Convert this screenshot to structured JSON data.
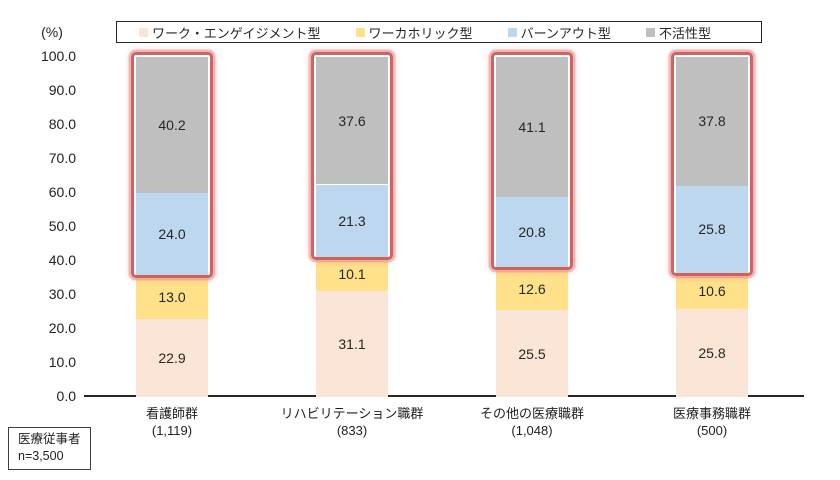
{
  "unit_label": "(%)",
  "legend": {
    "items": [
      {
        "label": "ワーク・エンゲイジメント型",
        "color": "#fbe5d6"
      },
      {
        "label": "ワーカホリック型",
        "color": "#ffe18a"
      },
      {
        "label": "バーンアウト型",
        "color": "#bdd7ee"
      },
      {
        "label": "不活性型",
        "color": "#bfbfbf"
      }
    ]
  },
  "note_box": {
    "line1": "医療従事者",
    "line2": "n=3,500"
  },
  "chart_data": {
    "type": "bar",
    "stacked": true,
    "orientation": "vertical",
    "categories": [
      "看護師群",
      "リハビリテーション職群",
      "その他の医療職群",
      "医療事務職群"
    ],
    "category_counts": [
      "(1,119)",
      "(833)",
      "(1,048)",
      "(500)"
    ],
    "series": [
      {
        "name": "ワーク・エンゲイジメント型",
        "color": "#fbe5d6",
        "values": [
          22.9,
          31.1,
          25.5,
          25.8
        ]
      },
      {
        "name": "ワーカホリック型",
        "color": "#ffe18a",
        "values": [
          13.0,
          10.1,
          12.6,
          10.6
        ]
      },
      {
        "name": "バーンアウト型",
        "color": "#bdd7ee",
        "values": [
          24.0,
          21.3,
          20.8,
          25.8
        ]
      },
      {
        "name": "不活性型",
        "color": "#bfbfbf",
        "values": [
          40.2,
          37.6,
          41.1,
          37.8
        ]
      }
    ],
    "highlight": {
      "series": [
        "バーンアウト型",
        "不活性型"
      ],
      "border_color": "#ce5454",
      "glow_color": "#e79696"
    },
    "ylabel": "(%)",
    "ylim": [
      0,
      100
    ],
    "ytick_step": 10,
    "ytick_format_decimals": 1,
    "grid": false,
    "legend_position": "top",
    "value_labels": "inside"
  }
}
